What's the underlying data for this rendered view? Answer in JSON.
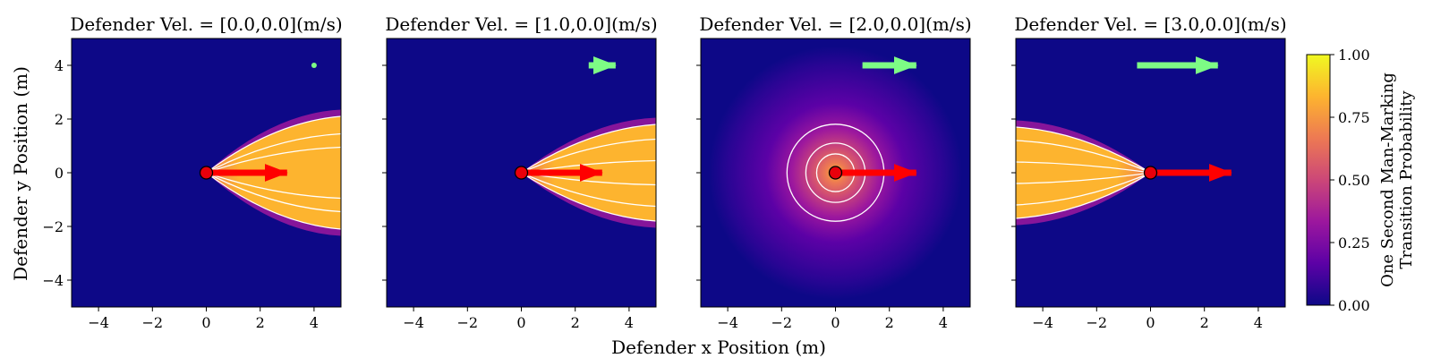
{
  "chart_data": {
    "type": "heatmap",
    "x_label": "Defender x Position (m)",
    "y_label": "Defender y Position (m)",
    "xlim": [
      -5,
      5
    ],
    "ylim": [
      -5,
      5
    ],
    "x_ticks": [
      -4,
      -2,
      0,
      2,
      4
    ],
    "y_ticks": [
      -4,
      -2,
      0,
      2,
      4
    ],
    "x_tick_labels": [
      "−4",
      "−2",
      "0",
      "2",
      "4"
    ],
    "y_tick_labels": [
      "−4",
      "−2",
      "0",
      "2",
      "4"
    ],
    "attacker": {
      "position": [
        0,
        0
      ],
      "velocity_arrow": [
        3,
        0
      ],
      "arrow_color": "#ff0000",
      "marker_color": "#e8000b"
    },
    "defender_arrow_color": "#7dfc85",
    "panels": [
      {
        "title": "Defender Vel. = [0.0,0.0](m/s)",
        "defender_velocity": [
          0.0,
          0.0
        ],
        "defender_arrow_start": [
          4,
          4
        ]
      },
      {
        "title": "Defender Vel. = [1.0,0.0](m/s)",
        "defender_velocity": [
          1.0,
          0.0
        ],
        "defender_arrow_start": [
          2.5,
          4
        ]
      },
      {
        "title": "Defender Vel. = [2.0,0.0](m/s)",
        "defender_velocity": [
          2.0,
          0.0
        ],
        "defender_arrow_start": [
          1,
          4
        ]
      },
      {
        "title": "Defender Vel. = [3.0,0.0](m/s)",
        "defender_velocity": [
          3.0,
          0.0
        ],
        "defender_arrow_start": [
          -0.5,
          4
        ]
      }
    ],
    "colorbar": {
      "label_line1": "One Second Man-Marking",
      "label_line2": "Transition Probability",
      "range": [
        0,
        1
      ],
      "ticks": [
        0,
        0.25,
        0.5,
        0.75,
        1.0
      ],
      "tick_labels": [
        "0.00",
        "0.25",
        "0.50",
        "0.75",
        "1.00"
      ],
      "colormap": "plasma",
      "stops": [
        "#0d0887",
        "#5c01a6",
        "#9c179e",
        "#cc4778",
        "#ed7953",
        "#fdb42f",
        "#f0f921"
      ]
    }
  }
}
